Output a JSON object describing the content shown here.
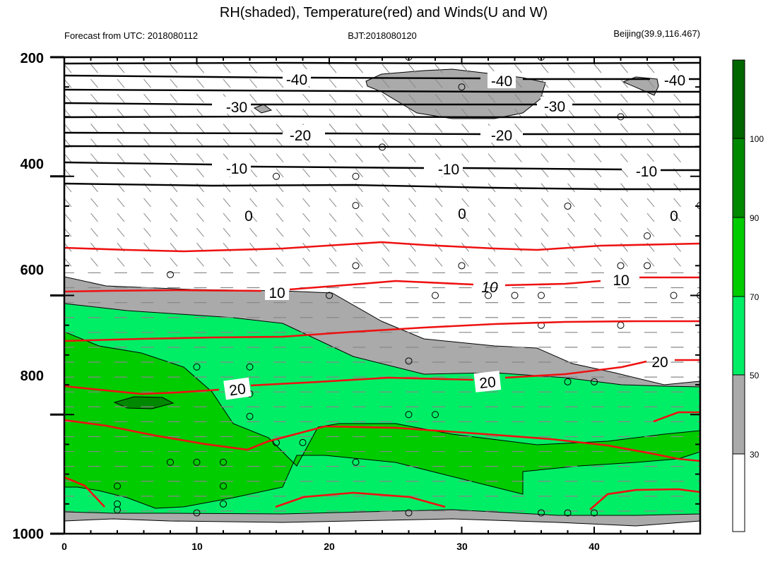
{
  "chart_data": {
    "type": "contour",
    "title": "RH(shaded), Temperature(red) and Winds(U and W)",
    "subtitle_left": "Forecast from UTC: 2018080112",
    "subtitle_center": "BJT:2018080120",
    "subtitle_right": "Beijing(39.9,116.467)",
    "xlim": [
      0,
      48
    ],
    "ylim": [
      1000,
      200
    ],
    "x_ticks": [
      0,
      10,
      20,
      30,
      40
    ],
    "y_ticks": [
      200,
      400,
      600,
      800,
      1000
    ],
    "grid": false,
    "colorbar": {
      "levels": [
        30,
        50,
        70,
        90,
        100
      ],
      "colors": [
        "#ffffff",
        "#aaaaaa",
        "#00ee66",
        "#00cc00",
        "#008800",
        "#006600"
      ]
    },
    "temperature_contours_black": [
      {
        "label": "-40",
        "y": 232
      },
      {
        "label": "-30",
        "y": 290
      },
      {
        "label": "-20",
        "y": 340
      },
      {
        "label": "-10",
        "y": 410
      },
      {
        "label": "0",
        "y": 505
      }
    ],
    "temperature_contours_red": [
      {
        "label": "10",
        "y": 640
      },
      {
        "label": "20",
        "y": 825
      }
    ],
    "colors": {
      "rh_gray": "#aaaaaa",
      "rh_light_green": "#00ee66",
      "rh_green": "#00cc00",
      "rh_dark_green": "#008800",
      "temp_red": "#ee1111",
      "temp_black": "#000000"
    }
  }
}
